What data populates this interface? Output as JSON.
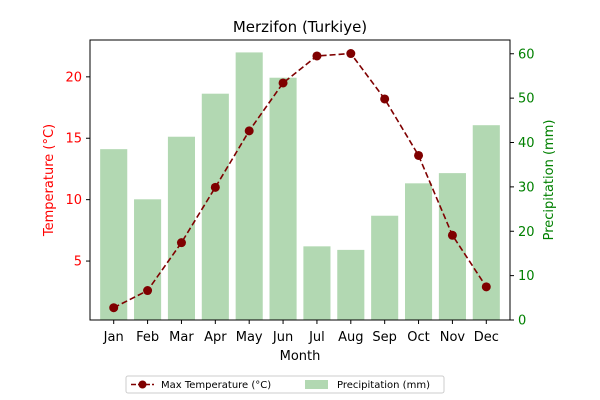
{
  "chart_data": {
    "type": "bar+line",
    "title": "Merzifon (Turkiye)",
    "xlabel": "Month",
    "ylabel_left": "Temperature (°C)",
    "ylabel_right": "Precipitation (mm)",
    "categories": [
      "Jan",
      "Feb",
      "Mar",
      "Apr",
      "May",
      "Jun",
      "Jul",
      "Aug",
      "Sep",
      "Oct",
      "Nov",
      "Dec"
    ],
    "y_left_lim": [
      0.2,
      23.0
    ],
    "y_left_ticks": [
      5,
      10,
      15,
      20
    ],
    "y_right_lim": [
      0,
      63.1
    ],
    "y_right_ticks": [
      0,
      10,
      20,
      30,
      40,
      50,
      60
    ],
    "series": [
      {
        "name": "Precipitation (mm)",
        "type": "bar",
        "axis": "right",
        "color": "#b2d8b2",
        "values": [
          38.5,
          27.2,
          41.3,
          51.0,
          60.3,
          54.6,
          16.6,
          15.8,
          23.5,
          30.8,
          33.1,
          43.9
        ]
      },
      {
        "name": "Max Temperature (°C)",
        "type": "line",
        "axis": "left",
        "color": "#7f0000",
        "values": [
          1.2,
          2.6,
          6.5,
          11.0,
          15.6,
          19.5,
          21.7,
          21.9,
          18.2,
          13.6,
          7.1,
          2.9
        ]
      }
    ],
    "colors": {
      "left_axis": "#ff0000",
      "right_axis": "#008000",
      "text": "#000000"
    },
    "legend_position": "bottom-center",
    "grid": false
  }
}
